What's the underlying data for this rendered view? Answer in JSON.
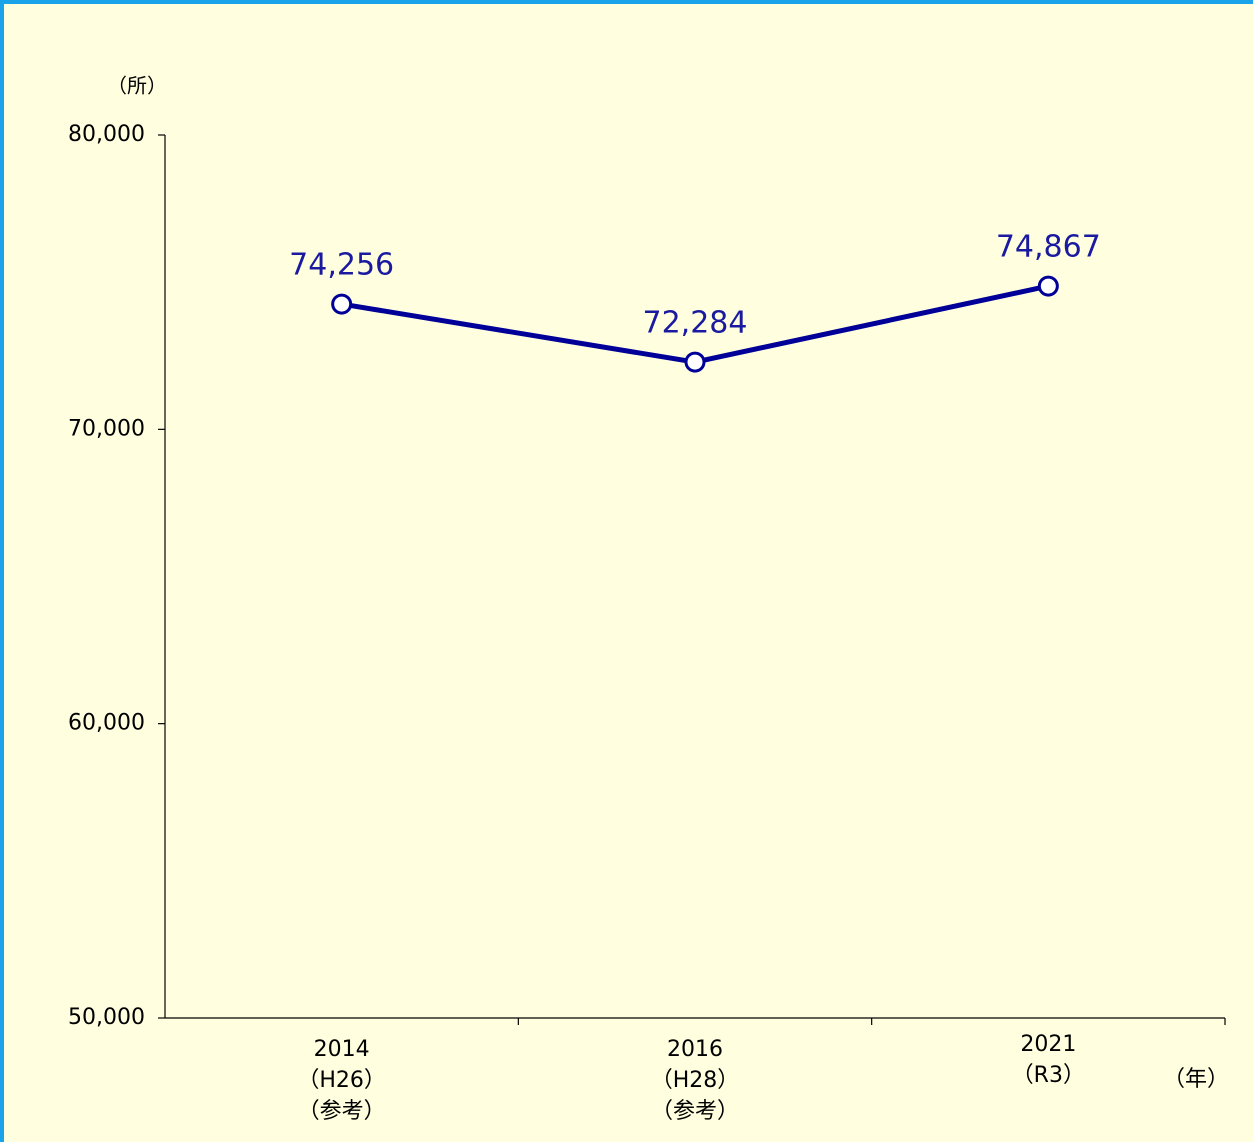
{
  "chart_data": {
    "type": "line",
    "y_label": "（所）",
    "x_label": "（年）",
    "categories": [
      [
        "2014",
        "（H26）",
        "（参考）"
      ],
      [
        "2016",
        "（H28）",
        "（参考）"
      ],
      [
        "2021",
        "（R3）"
      ]
    ],
    "series": [
      {
        "color": "#000099",
        "values": [
          74256,
          72284,
          74867
        ],
        "value_labels": [
          "74,256",
          "72,284",
          "74,867"
        ]
      }
    ],
    "ylim": [
      50000,
      80000
    ],
    "yticks": [
      {
        "value": 50000,
        "label": "50,000"
      },
      {
        "value": 60000,
        "label": "60,000"
      },
      {
        "value": 70000,
        "label": "70,000"
      },
      {
        "value": 80000,
        "label": "80,000"
      }
    ]
  }
}
